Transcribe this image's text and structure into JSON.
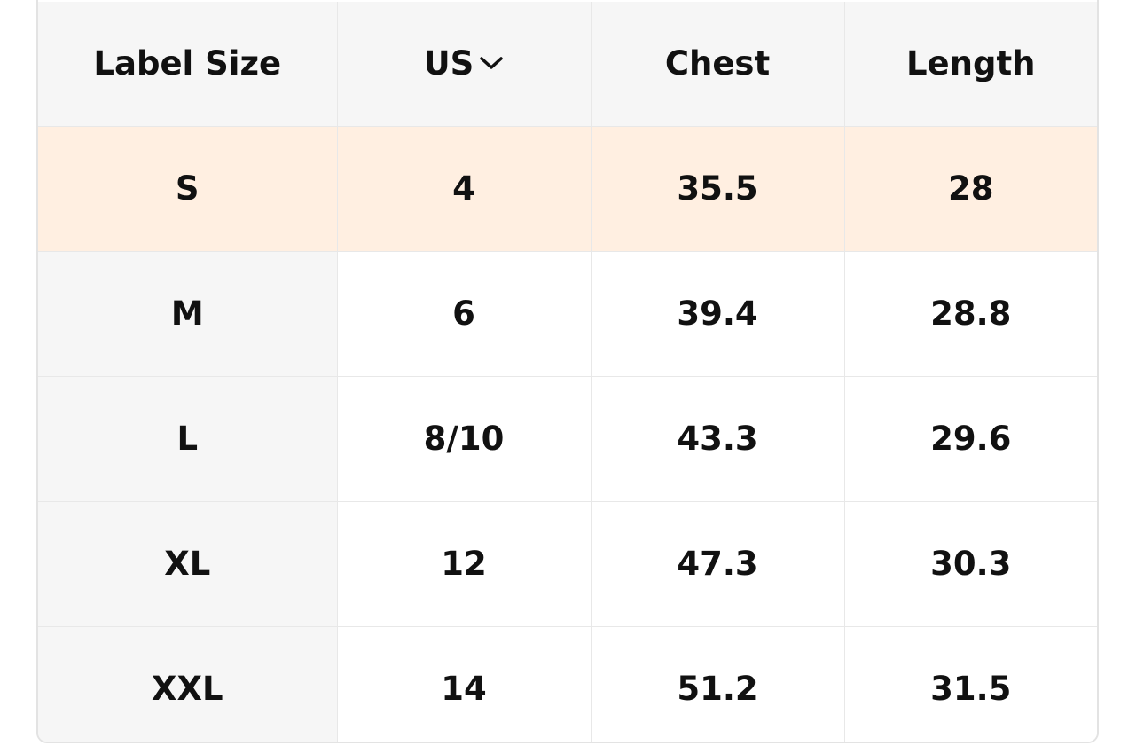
{
  "table": {
    "headers": [
      "Label Size",
      "US",
      "Chest",
      "Length"
    ],
    "unit_selector_icon": "chevron-down-icon",
    "highlight_color": "#ffefe1",
    "rows": [
      {
        "label": "S",
        "us": "4",
        "chest": "35.5",
        "length": "28",
        "highlighted": true
      },
      {
        "label": "M",
        "us": "6",
        "chest": "39.4",
        "length": "28.8"
      },
      {
        "label": "L",
        "us": "8/10",
        "chest": "43.3",
        "length": "29.6"
      },
      {
        "label": "XL",
        "us": "12",
        "chest": "47.3",
        "length": "30.3"
      },
      {
        "label": "XXL",
        "us": "14",
        "chest": "51.2",
        "length": "31.5"
      }
    ]
  }
}
